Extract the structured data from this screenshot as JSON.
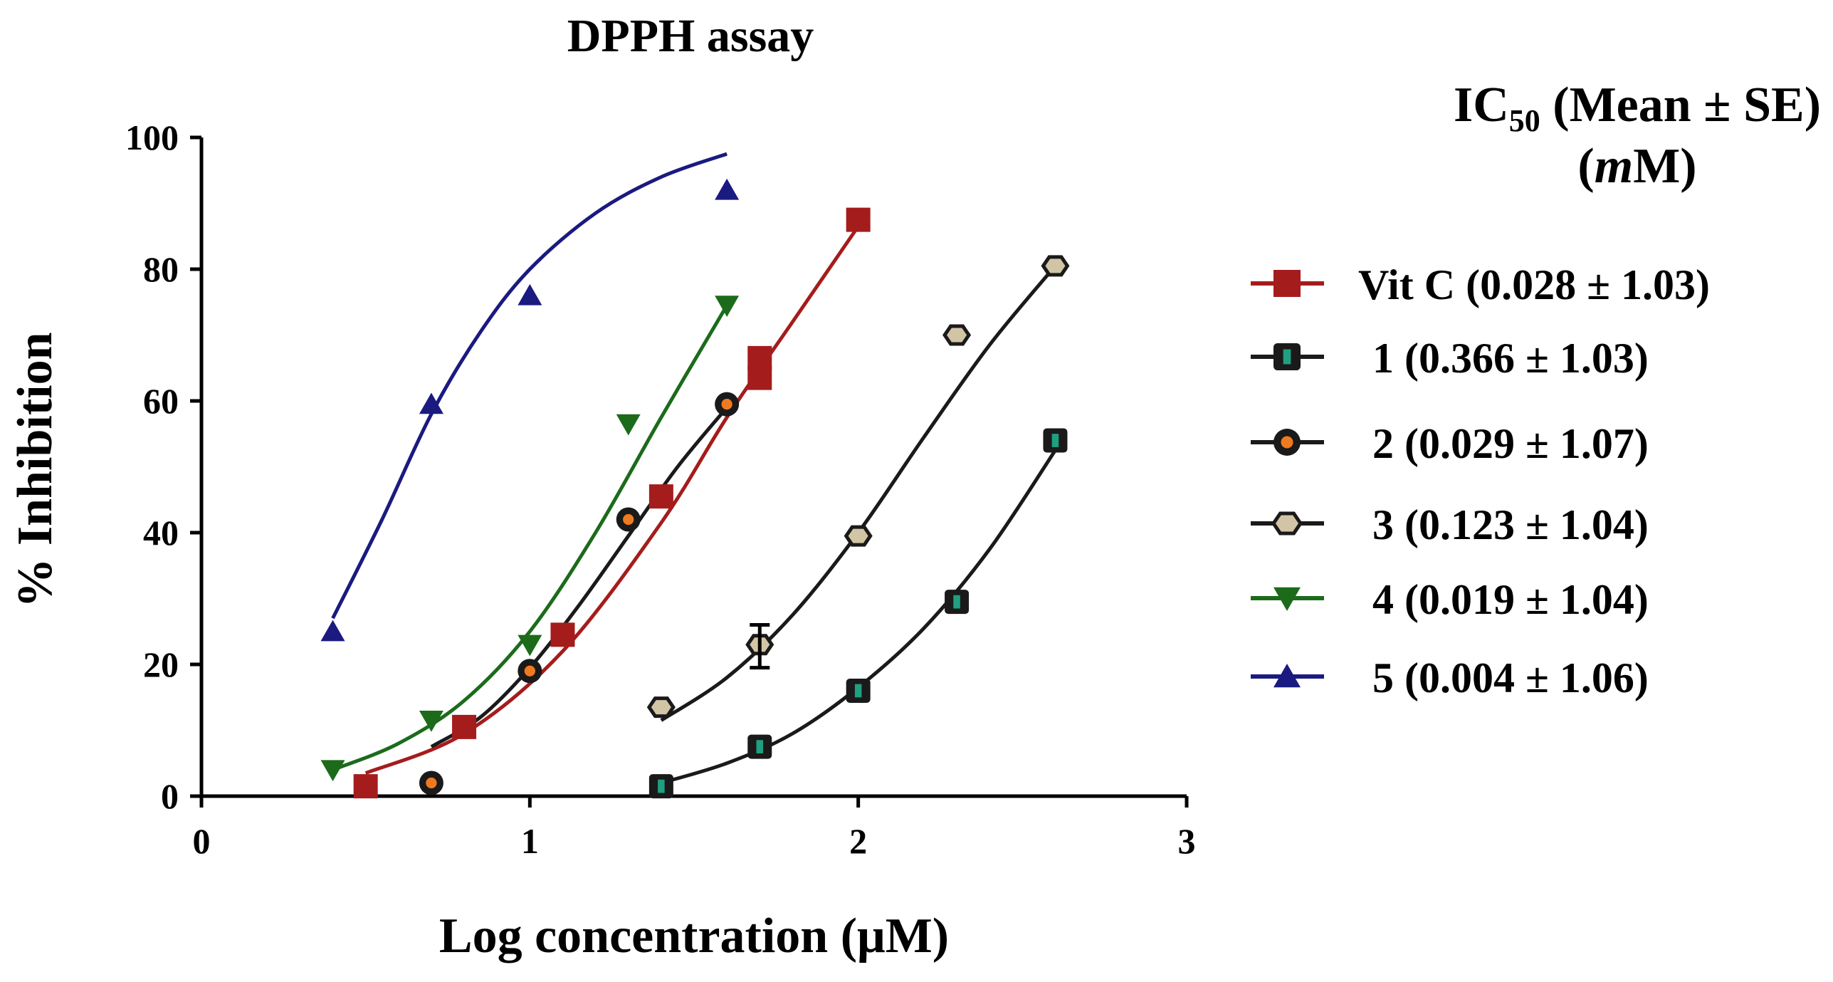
{
  "chart_data": {
    "type": "scatter",
    "title": "DPPH assay",
    "xlabel": "Log concentration (μM)",
    "ylabel": "% Inhibition",
    "xlim": [
      0,
      3
    ],
    "ylim": [
      0,
      100
    ],
    "xticks": [
      "0",
      "1",
      "2",
      "3"
    ],
    "yticks": [
      "0",
      "20",
      "40",
      "60",
      "80",
      "100"
    ],
    "legend_title": "IC50 (Mean ± SE) (mM)",
    "legend_placement": "right",
    "grid": false,
    "series": [
      {
        "name": "Vit C (0.028 ± 1.03)",
        "color": "#a51c1c",
        "marker": "square",
        "points": [
          {
            "x": 0.5,
            "y": 1.5
          },
          {
            "x": 0.8,
            "y": 10.5
          },
          {
            "x": 1.1,
            "y": 24.5
          },
          {
            "x": 1.4,
            "y": 45.5
          },
          {
            "x": 1.7,
            "y": 63.5
          },
          {
            "x": 1.7,
            "y": 66.5
          },
          {
            "x": 2.0,
            "y": 87.5
          }
        ],
        "fit": [
          {
            "x": 0.5,
            "y": 3.5
          },
          {
            "x": 0.8,
            "y": 9.5
          },
          {
            "x": 1.1,
            "y": 22.0
          },
          {
            "x": 1.4,
            "y": 41.5
          },
          {
            "x": 1.6,
            "y": 57.5
          },
          {
            "x": 1.8,
            "y": 72.0
          },
          {
            "x": 2.0,
            "y": 86.5
          }
        ]
      },
      {
        "name": "1 (0.366 ± 1.03)",
        "color": "#1a1a1a",
        "marker": "square-teal",
        "points": [
          {
            "x": 1.4,
            "y": 1.5
          },
          {
            "x": 1.7,
            "y": 7.5
          },
          {
            "x": 2.0,
            "y": 16.0
          },
          {
            "x": 2.3,
            "y": 29.5
          },
          {
            "x": 2.6,
            "y": 54.0
          }
        ],
        "fit": [
          {
            "x": 1.4,
            "y": 2.0
          },
          {
            "x": 1.6,
            "y": 5.0
          },
          {
            "x": 1.8,
            "y": 9.5
          },
          {
            "x": 2.0,
            "y": 16.5
          },
          {
            "x": 2.2,
            "y": 25.5
          },
          {
            "x": 2.4,
            "y": 37.5
          },
          {
            "x": 2.6,
            "y": 52.5
          }
        ]
      },
      {
        "name": "2 (0.029 ± 1.07)",
        "color": "#1a1a1a",
        "marker": "circle-orange",
        "points": [
          {
            "x": 0.7,
            "y": 2.0
          },
          {
            "x": 1.0,
            "y": 19.0
          },
          {
            "x": 1.3,
            "y": 42.0
          },
          {
            "x": 1.6,
            "y": 59.5
          }
        ],
        "fit": [
          {
            "x": 0.7,
            "y": 7.5
          },
          {
            "x": 0.85,
            "y": 12.0
          },
          {
            "x": 1.0,
            "y": 19.5
          },
          {
            "x": 1.15,
            "y": 29.0
          },
          {
            "x": 1.3,
            "y": 39.5
          },
          {
            "x": 1.45,
            "y": 50.0
          },
          {
            "x": 1.6,
            "y": 59.0
          }
        ]
      },
      {
        "name": "3 (0.123 ± 1.04)",
        "color": "#1a1a1a",
        "marker": "hexagon-tan",
        "points": [
          {
            "x": 1.4,
            "y": 13.5
          },
          {
            "x": 1.7,
            "y": 23.0
          },
          {
            "x": 2.0,
            "y": 39.5
          },
          {
            "x": 2.3,
            "y": 70.0
          },
          {
            "x": 2.6,
            "y": 80.5
          }
        ],
        "fit": [
          {
            "x": 1.4,
            "y": 11.5
          },
          {
            "x": 1.6,
            "y": 18.0
          },
          {
            "x": 1.8,
            "y": 27.5
          },
          {
            "x": 2.0,
            "y": 40.0
          },
          {
            "x": 2.2,
            "y": 54.5
          },
          {
            "x": 2.4,
            "y": 68.5
          },
          {
            "x": 2.6,
            "y": 80.5
          }
        ]
      },
      {
        "name": "4 (0.019 ± 1.04)",
        "color": "#1b6b1b",
        "marker": "triangle-down",
        "points": [
          {
            "x": 0.4,
            "y": 4.0
          },
          {
            "x": 0.7,
            "y": 11.5
          },
          {
            "x": 1.0,
            "y": 23.0
          },
          {
            "x": 1.3,
            "y": 56.5
          },
          {
            "x": 1.6,
            "y": 74.5
          }
        ],
        "fit": [
          {
            "x": 0.4,
            "y": 4.0
          },
          {
            "x": 0.6,
            "y": 8.0
          },
          {
            "x": 0.8,
            "y": 14.5
          },
          {
            "x": 1.0,
            "y": 25.0
          },
          {
            "x": 1.2,
            "y": 40.0
          },
          {
            "x": 1.4,
            "y": 57.5
          },
          {
            "x": 1.6,
            "y": 74.5
          }
        ]
      },
      {
        "name": "5 (0.004 ± 1.06)",
        "color": "#1a1a80",
        "marker": "triangle-up",
        "points": [
          {
            "x": 0.4,
            "y": 25.0
          },
          {
            "x": 0.7,
            "y": 59.5
          },
          {
            "x": 1.0,
            "y": 76.0
          },
          {
            "x": 1.6,
            "y": 92.0
          }
        ],
        "fit": [
          {
            "x": 0.4,
            "y": 27.0
          },
          {
            "x": 0.55,
            "y": 42.0
          },
          {
            "x": 0.7,
            "y": 58.0
          },
          {
            "x": 0.85,
            "y": 70.5
          },
          {
            "x": 1.0,
            "y": 80.0
          },
          {
            "x": 1.2,
            "y": 88.5
          },
          {
            "x": 1.4,
            "y": 94.0
          },
          {
            "x": 1.6,
            "y": 97.5
          }
        ]
      }
    ]
  }
}
